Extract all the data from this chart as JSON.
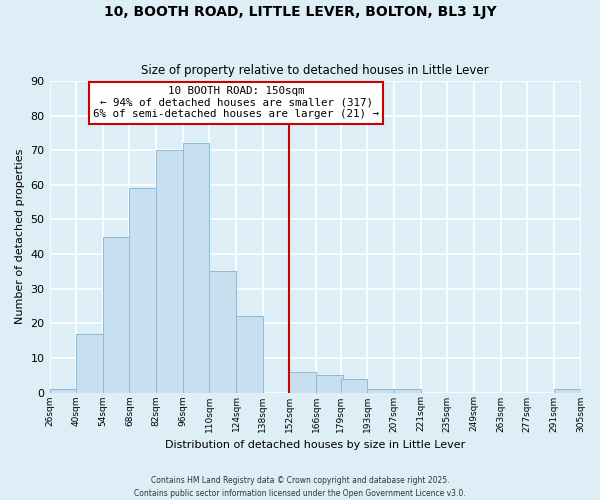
{
  "title": "10, BOOTH ROAD, LITTLE LEVER, BOLTON, BL3 1JY",
  "subtitle": "Size of property relative to detached houses in Little Lever",
  "xlabel": "Distribution of detached houses by size in Little Lever",
  "ylabel": "Number of detached properties",
  "bin_edges": [
    26,
    40,
    54,
    68,
    82,
    96,
    110,
    124,
    138,
    152,
    166,
    179,
    193,
    207,
    221,
    235,
    249,
    263,
    277,
    291,
    305
  ],
  "bin_labels": [
    "26sqm",
    "40sqm",
    "54sqm",
    "68sqm",
    "82sqm",
    "96sqm",
    "110sqm",
    "124sqm",
    "138sqm",
    "152sqm",
    "166sqm",
    "179sqm",
    "193sqm",
    "207sqm",
    "221sqm",
    "235sqm",
    "249sqm",
    "263sqm",
    "277sqm",
    "291sqm",
    "305sqm"
  ],
  "counts": [
    1,
    17,
    45,
    59,
    70,
    72,
    35,
    22,
    0,
    6,
    5,
    4,
    1,
    1,
    0,
    0,
    0,
    0,
    0,
    1
  ],
  "bar_color": "#c8dff0",
  "bar_edge_color": "#8bbbd8",
  "vline_x": 152,
  "vline_color": "#cc0000",
  "annotation_title": "10 BOOTH ROAD: 150sqm",
  "annotation_line1": "← 94% of detached houses are smaller (317)",
  "annotation_line2": "6% of semi-detached houses are larger (21) →",
  "annotation_box_color": "white",
  "annotation_box_edge_color": "#cc0000",
  "ylim": [
    0,
    90
  ],
  "yticks": [
    0,
    10,
    20,
    30,
    40,
    50,
    60,
    70,
    80,
    90
  ],
  "background_color": "#ddeef7",
  "grid_color": "white",
  "footer_line1": "Contains HM Land Registry data © Crown copyright and database right 2025.",
  "footer_line2": "Contains public sector information licensed under the Open Government Licence v3.0."
}
